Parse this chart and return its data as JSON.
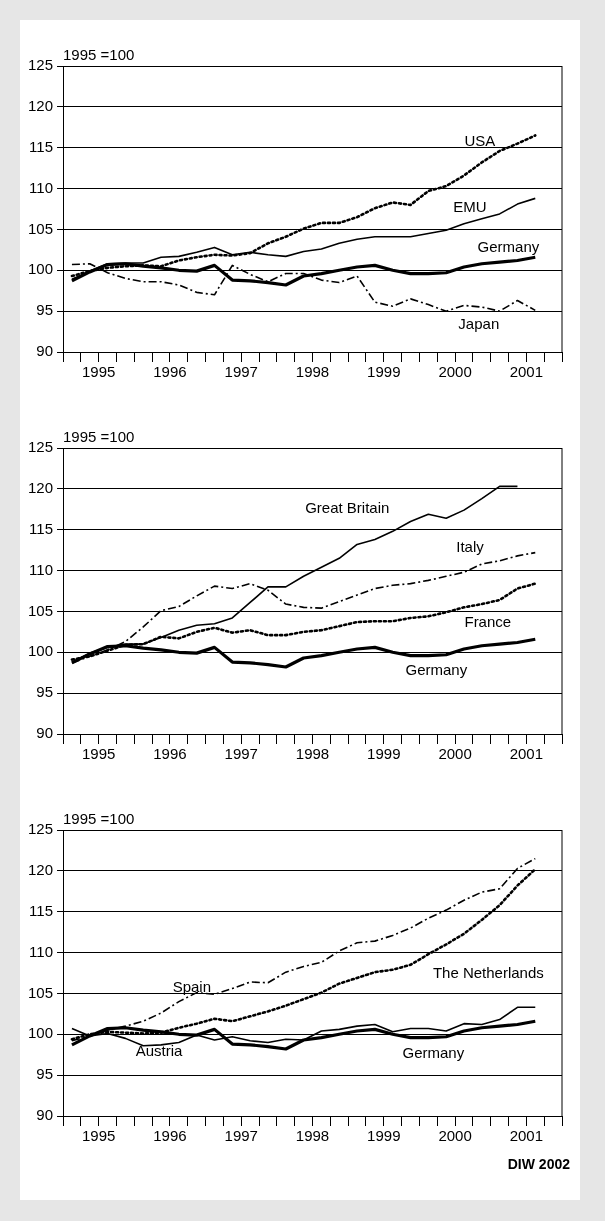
{
  "chart_data": [
    {
      "type": "line",
      "ylabel": "1995 =100",
      "x": [
        1995.125,
        1995.375,
        1995.625,
        1995.875,
        1996.125,
        1996.375,
        1996.625,
        1996.875,
        1997.125,
        1997.375,
        1997.625,
        1997.875,
        1998.125,
        1998.375,
        1998.625,
        1998.875,
        1999.125,
        1999.375,
        1999.625,
        1999.875,
        2000.125,
        2000.375,
        2000.625,
        2000.875,
        2001.125,
        2001.375,
        2001.625
      ],
      "xlim": [
        1995,
        2002
      ],
      "xticks": [
        {
          "value": 1995,
          "label": null
        },
        {
          "value": 1995.25,
          "label": null
        },
        {
          "value": 1995.5,
          "label": "1995"
        },
        {
          "value": 1995.75,
          "label": null
        },
        {
          "value": 1996,
          "label": null
        },
        {
          "value": 1996.25,
          "label": null
        },
        {
          "value": 1996.5,
          "label": "1996"
        },
        {
          "value": 1996.75,
          "label": null
        },
        {
          "value": 1997,
          "label": null
        },
        {
          "value": 1997.25,
          "label": null
        },
        {
          "value": 1997.5,
          "label": "1997"
        },
        {
          "value": 1997.75,
          "label": null
        },
        {
          "value": 1998,
          "label": null
        },
        {
          "value": 1998.25,
          "label": null
        },
        {
          "value": 1998.5,
          "label": "1998"
        },
        {
          "value": 1998.75,
          "label": null
        },
        {
          "value": 1999,
          "label": null
        },
        {
          "value": 1999.25,
          "label": null
        },
        {
          "value": 1999.5,
          "label": "1999"
        },
        {
          "value": 1999.75,
          "label": null
        },
        {
          "value": 2000,
          "label": null
        },
        {
          "value": 2000.25,
          "label": null
        },
        {
          "value": 2000.5,
          "label": "2000"
        },
        {
          "value": 2000.75,
          "label": null
        },
        {
          "value": 2001,
          "label": null
        },
        {
          "value": 2001.25,
          "label": null
        },
        {
          "value": 2001.5,
          "label": "2001"
        },
        {
          "value": 2001.75,
          "label": null
        },
        {
          "value": 2002,
          "label": null
        }
      ],
      "ylim": [
        90,
        125
      ],
      "yticks": [
        90,
        95,
        100,
        105,
        110,
        115,
        120,
        125
      ],
      "grid": "y",
      "legend": false,
      "marker": "none",
      "series": [
        {
          "name": "Germany",
          "color": "#000000",
          "line_style": "solid",
          "values": [
            98.7,
            99.8,
            100.7,
            100.8,
            100.5,
            100.3,
            100.0,
            99.9,
            100.6,
            98.8,
            98.7,
            98.5,
            98.2,
            99.3,
            99.6,
            100.0,
            100.4,
            100.6,
            100.0,
            99.6,
            99.6,
            99.7,
            100.4,
            100.8,
            101.0,
            101.2,
            101.6
          ]
        },
        {
          "name": "EMU",
          "color": "#000000",
          "line_style": "solid",
          "values": [
            98.9,
            99.9,
            100.8,
            100.9,
            100.9,
            101.6,
            101.7,
            102.2,
            102.8,
            101.9,
            102.2,
            101.9,
            101.7,
            102.3,
            102.6,
            103.3,
            103.8,
            104.1,
            104.1,
            104.1,
            104.5,
            104.9,
            105.7,
            106.3,
            106.9,
            108.1,
            108.8
          ]
        },
        {
          "name": "USA",
          "color": "#000000",
          "line_style": "dotted",
          "values": [
            99.3,
            99.9,
            100.3,
            100.5,
            100.6,
            100.5,
            101.2,
            101.6,
            101.9,
            101.8,
            102.1,
            103.3,
            104.1,
            105.1,
            105.8,
            105.8,
            106.5,
            107.6,
            108.3,
            108.0,
            109.7,
            110.3,
            111.6,
            113.2,
            114.6,
            115.5,
            116.5
          ]
        },
        {
          "name": "Japan",
          "color": "#000000",
          "line_style": "dashed",
          "values": [
            100.7,
            100.8,
            99.7,
            99.0,
            98.6,
            98.6,
            98.2,
            97.3,
            97.0,
            100.6,
            99.5,
            98.6,
            99.6,
            99.6,
            98.8,
            98.5,
            99.3,
            96.1,
            95.6,
            96.5,
            95.8,
            95.0,
            95.7,
            95.5,
            95.0,
            96.3,
            95.1
          ]
        }
      ]
    },
    {
      "type": "line",
      "ylabel": "1995 =100",
      "x": [
        1995.125,
        1995.375,
        1995.625,
        1995.875,
        1996.125,
        1996.375,
        1996.625,
        1996.875,
        1997.125,
        1997.375,
        1997.625,
        1997.875,
        1998.125,
        1998.375,
        1998.625,
        1998.875,
        1999.125,
        1999.375,
        1999.625,
        1999.875,
        2000.125,
        2000.375,
        2000.625,
        2000.875,
        2001.125,
        2001.375,
        2001.625
      ],
      "xlim": [
        1995,
        2002
      ],
      "xticks": [
        {
          "value": 1995,
          "label": null
        },
        {
          "value": 1995.25,
          "label": null
        },
        {
          "value": 1995.5,
          "label": "1995"
        },
        {
          "value": 1995.75,
          "label": null
        },
        {
          "value": 1996,
          "label": null
        },
        {
          "value": 1996.25,
          "label": null
        },
        {
          "value": 1996.5,
          "label": "1996"
        },
        {
          "value": 1996.75,
          "label": null
        },
        {
          "value": 1997,
          "label": null
        },
        {
          "value": 1997.25,
          "label": null
        },
        {
          "value": 1997.5,
          "label": "1997"
        },
        {
          "value": 1997.75,
          "label": null
        },
        {
          "value": 1998,
          "label": null
        },
        {
          "value": 1998.25,
          "label": null
        },
        {
          "value": 1998.5,
          "label": "1998"
        },
        {
          "value": 1998.75,
          "label": null
        },
        {
          "value": 1999,
          "label": null
        },
        {
          "value": 1999.25,
          "label": null
        },
        {
          "value": 1999.5,
          "label": "1999"
        },
        {
          "value": 1999.75,
          "label": null
        },
        {
          "value": 2000,
          "label": null
        },
        {
          "value": 2000.25,
          "label": null
        },
        {
          "value": 2000.5,
          "label": "2000"
        },
        {
          "value": 2000.75,
          "label": null
        },
        {
          "value": 2001,
          "label": null
        },
        {
          "value": 2001.25,
          "label": null
        },
        {
          "value": 2001.5,
          "label": "2001"
        },
        {
          "value": 2001.75,
          "label": null
        },
        {
          "value": 2002,
          "label": null
        }
      ],
      "ylim": [
        90,
        125
      ],
      "yticks": [
        90,
        95,
        100,
        105,
        110,
        115,
        120,
        125
      ],
      "grid": "y",
      "legend": false,
      "marker": "none",
      "series": [
        {
          "name": "Germany",
          "color": "#000000",
          "line_style": "solid",
          "values": [
            98.7,
            99.8,
            100.7,
            100.8,
            100.5,
            100.3,
            100.0,
            99.9,
            100.6,
            98.8,
            98.7,
            98.5,
            98.2,
            99.3,
            99.6,
            100.0,
            100.4,
            100.6,
            100.0,
            99.6,
            99.6,
            99.7,
            100.4,
            100.8,
            101.0,
            101.2,
            101.6
          ]
        },
        {
          "name": "Great Britain",
          "color": "#000000",
          "line_style": "solid",
          "values": [
            98.8,
            99.9,
            100.6,
            101.0,
            101.0,
            101.8,
            102.7,
            103.3,
            103.5,
            104.2,
            106.1,
            108.0,
            108.0,
            109.3,
            110.4,
            111.5,
            113.2,
            113.8,
            114.8,
            116.0,
            116.9,
            116.4,
            117.4,
            118.8,
            120.3,
            120.3,
            null
          ]
        },
        {
          "name": "Italy",
          "color": "#000000",
          "line_style": "dashed",
          "values": [
            98.7,
            99.5,
            100.3,
            101.3,
            103.1,
            105.1,
            105.6,
            106.9,
            108.1,
            107.8,
            108.4,
            107.6,
            105.9,
            105.5,
            105.4,
            106.2,
            107.0,
            107.8,
            108.2,
            108.4,
            108.8,
            109.3,
            109.8,
            110.8,
            111.2,
            111.8,
            112.2
          ]
        },
        {
          "name": "France",
          "color": "#000000",
          "line_style": "dotted",
          "values": [
            99.1,
            99.5,
            100.2,
            100.9,
            101.0,
            101.9,
            101.7,
            102.5,
            103.0,
            102.4,
            102.7,
            102.1,
            102.1,
            102.5,
            102.7,
            103.2,
            103.7,
            103.8,
            103.8,
            104.2,
            104.4,
            104.9,
            105.5,
            105.9,
            106.4,
            107.8,
            108.4
          ]
        }
      ]
    },
    {
      "type": "line",
      "ylabel": "1995 =100",
      "annotations": [
        "DIW 2002"
      ],
      "x": [
        1995.125,
        1995.375,
        1995.625,
        1995.875,
        1996.125,
        1996.375,
        1996.625,
        1996.875,
        1997.125,
        1997.375,
        1997.625,
        1997.875,
        1998.125,
        1998.375,
        1998.625,
        1998.875,
        1999.125,
        1999.375,
        1999.625,
        1999.875,
        2000.125,
        2000.375,
        2000.625,
        2000.875,
        2001.125,
        2001.375,
        2001.625
      ],
      "xlim": [
        1995,
        2002
      ],
      "xticks": [
        {
          "value": 1995,
          "label": null
        },
        {
          "value": 1995.25,
          "label": null
        },
        {
          "value": 1995.5,
          "label": "1995"
        },
        {
          "value": 1995.75,
          "label": null
        },
        {
          "value": 1996,
          "label": null
        },
        {
          "value": 1996.25,
          "label": null
        },
        {
          "value": 1996.5,
          "label": "1996"
        },
        {
          "value": 1996.75,
          "label": null
        },
        {
          "value": 1997,
          "label": null
        },
        {
          "value": 1997.25,
          "label": null
        },
        {
          "value": 1997.5,
          "label": "1997"
        },
        {
          "value": 1997.75,
          "label": null
        },
        {
          "value": 1998,
          "label": null
        },
        {
          "value": 1998.25,
          "label": null
        },
        {
          "value": 1998.5,
          "label": "1998"
        },
        {
          "value": 1998.75,
          "label": null
        },
        {
          "value": 1999,
          "label": null
        },
        {
          "value": 1999.25,
          "label": null
        },
        {
          "value": 1999.5,
          "label": "1999"
        },
        {
          "value": 1999.75,
          "label": null
        },
        {
          "value": 2000,
          "label": null
        },
        {
          "value": 2000.25,
          "label": null
        },
        {
          "value": 2000.5,
          "label": "2000"
        },
        {
          "value": 2000.75,
          "label": null
        },
        {
          "value": 2001,
          "label": null
        },
        {
          "value": 2001.25,
          "label": null
        },
        {
          "value": 2001.5,
          "label": "2001"
        },
        {
          "value": 2001.75,
          "label": null
        },
        {
          "value": 2002,
          "label": null
        }
      ],
      "ylim": [
        90,
        125
      ],
      "yticks": [
        90,
        95,
        100,
        105,
        110,
        115,
        120,
        125
      ],
      "grid": "y",
      "legend": false,
      "marker": "none",
      "series": [
        {
          "name": "Germany",
          "color": "#000000",
          "line_style": "solid",
          "values": [
            98.7,
            99.8,
            100.7,
            100.8,
            100.5,
            100.3,
            100.0,
            99.9,
            100.6,
            98.8,
            98.7,
            98.5,
            98.2,
            99.3,
            99.6,
            100.0,
            100.4,
            100.6,
            100.0,
            99.6,
            99.6,
            99.7,
            100.4,
            100.8,
            101.0,
            101.2,
            101.6
          ]
        },
        {
          "name": "Spain",
          "color": "#000000",
          "line_style": "dashed",
          "values": [
            99.2,
            99.8,
            100.5,
            101.0,
            101.6,
            102.6,
            104.0,
            105.1,
            104.9,
            105.6,
            106.4,
            106.3,
            107.6,
            108.3,
            108.8,
            110.2,
            111.2,
            111.4,
            112.1,
            113.0,
            114.2,
            115.2,
            116.4,
            117.4,
            117.8,
            120.3,
            121.5
          ]
        },
        {
          "name": "The Netherlands",
          "color": "#000000",
          "line_style": "dotted",
          "values": [
            99.4,
            100.0,
            100.3,
            100.2,
            100.1,
            100.2,
            100.8,
            101.3,
            101.9,
            101.6,
            102.2,
            102.8,
            103.5,
            104.3,
            105.1,
            106.2,
            106.9,
            107.6,
            107.9,
            108.5,
            109.8,
            111.0,
            112.3,
            114.0,
            115.8,
            118.2,
            120.2
          ]
        },
        {
          "name": "Austria",
          "color": "#000000",
          "line_style": "solid",
          "values": [
            100.7,
            99.8,
            100.1,
            99.5,
            98.6,
            98.7,
            99.0,
            99.9,
            99.3,
            99.7,
            99.2,
            99.0,
            99.4,
            99.3,
            100.4,
            100.6,
            101.0,
            101.2,
            100.3,
            100.7,
            100.7,
            100.4,
            101.3,
            101.2,
            101.8,
            103.3,
            103.3
          ]
        }
      ]
    }
  ]
}
